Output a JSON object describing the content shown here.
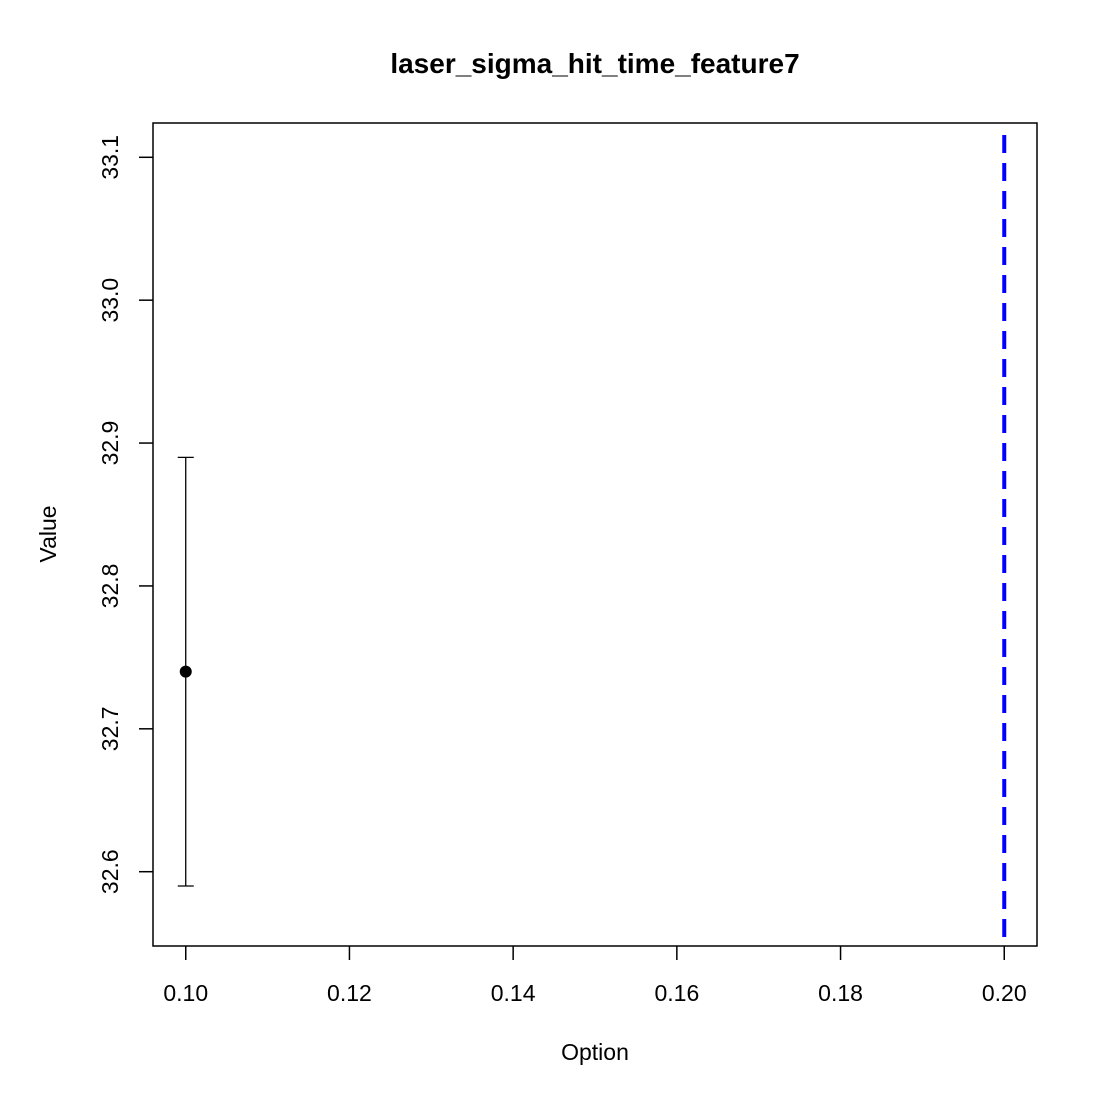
{
  "chart_data": {
    "type": "scatter",
    "title": "laser_sigma_hit_time_feature7",
    "xlabel": "Option",
    "ylabel": "Value",
    "xlim": [
      0.096,
      0.204
    ],
    "ylim": [
      32.548,
      33.124
    ],
    "x_ticks": [
      "0.10",
      "0.12",
      "0.14",
      "0.16",
      "0.18",
      "0.20"
    ],
    "y_ticks": [
      "32.6",
      "32.7",
      "32.8",
      "32.9",
      "33.0",
      "33.1"
    ],
    "points": [
      {
        "x": 0.1,
        "y": 32.74,
        "lower": 32.59,
        "upper": 32.89
      }
    ],
    "reference_line": {
      "x": 0.2,
      "color": "#0000ff",
      "style": "dashed"
    },
    "grid": false,
    "point_color": "#000000"
  }
}
